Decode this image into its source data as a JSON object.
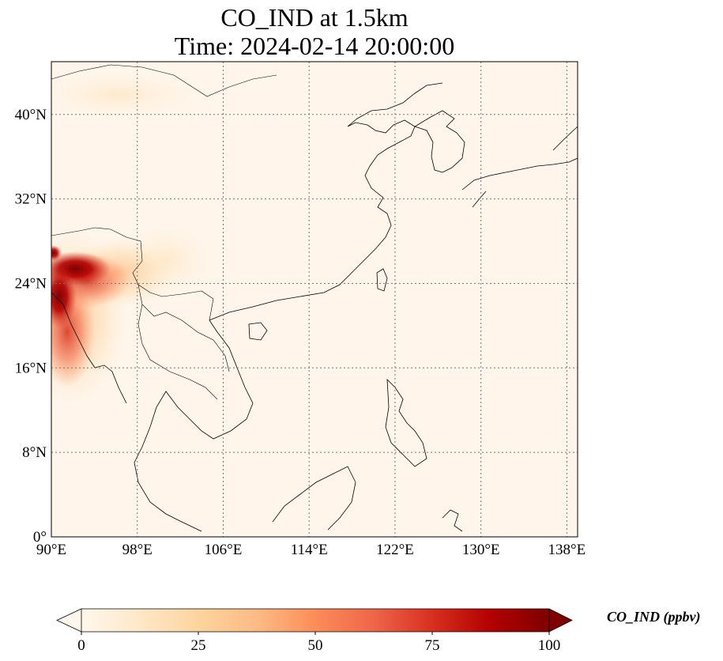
{
  "title": {
    "line1": "CO_IND at 1.5km",
    "line2": "Time: 2024-02-14 20:00:00"
  },
  "map": {
    "projection": "PlateCarree",
    "lon_range": [
      90,
      139
    ],
    "lat_range": [
      0,
      45
    ],
    "gridlines": "dotted",
    "lon_ticks": [
      {
        "value": 90,
        "label": "90°E"
      },
      {
        "value": 98,
        "label": "98°E"
      },
      {
        "value": 106,
        "label": "106°E"
      },
      {
        "value": 114,
        "label": "114°E"
      },
      {
        "value": 122,
        "label": "122°E"
      },
      {
        "value": 130,
        "label": "130°E"
      },
      {
        "value": 138,
        "label": "138°E"
      }
    ],
    "lat_ticks": [
      {
        "value": 0,
        "label": "0°"
      },
      {
        "value": 8,
        "label": "8°N"
      },
      {
        "value": 16,
        "label": "16°N"
      },
      {
        "value": 24,
        "label": "24°N"
      },
      {
        "value": 32,
        "label": "32°N"
      },
      {
        "value": 40,
        "label": "40°N"
      }
    ],
    "hotspot_region": "Myanmar / northeast India / Bangladesh border area",
    "background_value": "near 0 ppbv"
  },
  "colorbar": {
    "label": "CO_IND (ppbv)",
    "colormap": "OrRd",
    "min": 0,
    "max": 100,
    "extend": "both",
    "ticks": [
      {
        "value": 0,
        "label": "0"
      },
      {
        "value": 25,
        "label": "25"
      },
      {
        "value": 50,
        "label": "50"
      },
      {
        "value": 75,
        "label": "75"
      },
      {
        "value": 100,
        "label": "100"
      }
    ],
    "colors": [
      "#fff7ec",
      "#fee8c8",
      "#fdd49e",
      "#fdbb84",
      "#fc8d59",
      "#ef6548",
      "#d7301f",
      "#b30000",
      "#7f0000"
    ]
  }
}
